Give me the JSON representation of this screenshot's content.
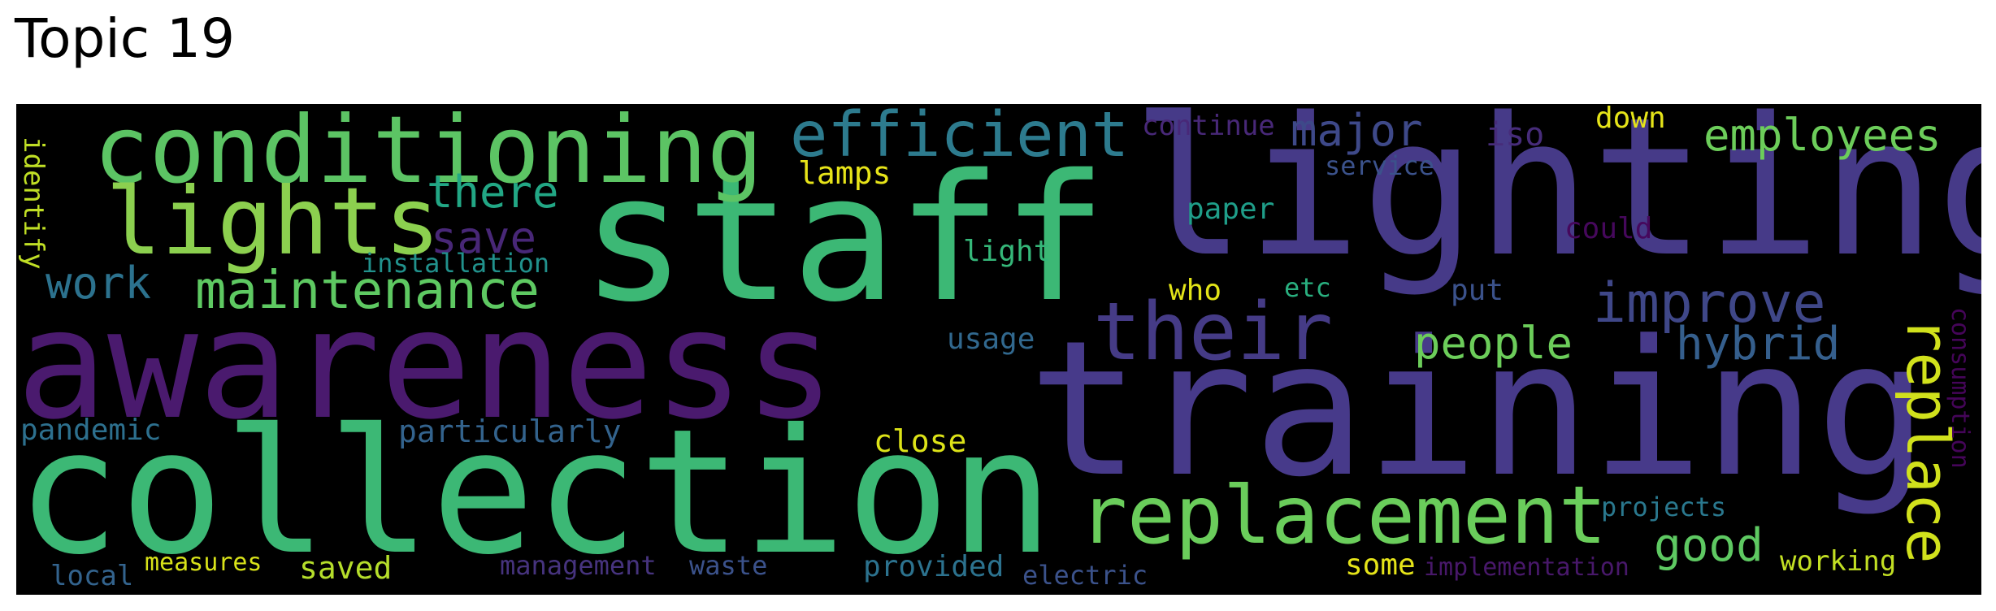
{
  "title": "Topic 19",
  "words": [
    {
      "text": "staff",
      "color": "#3cb875"
    },
    {
      "text": "lighting",
      "color": "#463a88"
    },
    {
      "text": "awareness",
      "color": "#4a1a6e"
    },
    {
      "text": "training",
      "color": "#473a8a"
    },
    {
      "text": "collection",
      "color": "#3cb875"
    },
    {
      "text": "conditioning",
      "color": "#5cc464"
    },
    {
      "text": "lights",
      "color": "#8cd04f"
    },
    {
      "text": "efficient",
      "color": "#2d7b8e"
    },
    {
      "text": "replacement",
      "color": "#6acd5b"
    },
    {
      "text": "their",
      "color": "#453b86"
    },
    {
      "text": "maintenance",
      "color": "#5ec962"
    },
    {
      "text": "improve",
      "color": "#3f4788"
    },
    {
      "text": "replace",
      "color": "#d1e11c"
    },
    {
      "text": "employees",
      "color": "#6ccd5a"
    },
    {
      "text": "people",
      "color": "#6ccd5a"
    },
    {
      "text": "hybrid",
      "color": "#355f8d"
    },
    {
      "text": "good",
      "color": "#5ec962"
    },
    {
      "text": "major",
      "color": "#3e4989"
    },
    {
      "text": "there",
      "color": "#22a785"
    },
    {
      "text": "save",
      "color": "#482777"
    },
    {
      "text": "work",
      "color": "#2c728e"
    },
    {
      "text": "continue",
      "color": "#482878"
    },
    {
      "text": "iso",
      "color": "#472c7a"
    },
    {
      "text": "down",
      "color": "#e5e419"
    },
    {
      "text": "service",
      "color": "#3b528b"
    },
    {
      "text": "lamps",
      "color": "#e7e419"
    },
    {
      "text": "paper",
      "color": "#1f9e89"
    },
    {
      "text": "could",
      "color": "#46085c"
    },
    {
      "text": "identify",
      "color": "#c0df25"
    },
    {
      "text": "installation",
      "color": "#21918c"
    },
    {
      "text": "light",
      "color": "#35b779"
    },
    {
      "text": "who",
      "color": "#e2e418"
    },
    {
      "text": "etc",
      "color": "#29af7f"
    },
    {
      "text": "put",
      "color": "#3b528b"
    },
    {
      "text": "usage",
      "color": "#31688e"
    },
    {
      "text": "consumption",
      "color": "#450559"
    },
    {
      "text": "pandemic",
      "color": "#2d708e"
    },
    {
      "text": "particularly",
      "color": "#33638d"
    },
    {
      "text": "close",
      "color": "#dde318"
    },
    {
      "text": "projects",
      "color": "#2a788e"
    },
    {
      "text": "working",
      "color": "#c2df23"
    },
    {
      "text": "measures",
      "color": "#d8e219"
    },
    {
      "text": "saved",
      "color": "#b5de2b"
    },
    {
      "text": "local",
      "color": "#33638d"
    },
    {
      "text": "management",
      "color": "#46337e"
    },
    {
      "text": "waste",
      "color": "#3b528b"
    },
    {
      "text": "provided",
      "color": "#2c728e"
    },
    {
      "text": "electric",
      "color": "#3b528b"
    },
    {
      "text": "some",
      "color": "#e5e419"
    },
    {
      "text": "implementation",
      "color": "#48186a"
    }
  ]
}
